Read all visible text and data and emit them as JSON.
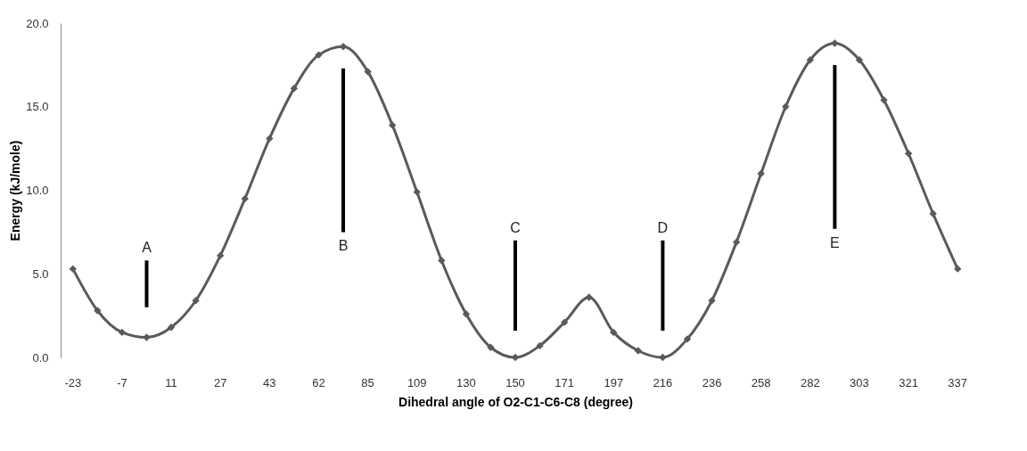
{
  "chart_data": {
    "type": "line",
    "xlabel": "Dihedral angle of O2-C1-C6-C8 (degree)",
    "ylabel": "Energy (kJ/mole)",
    "categories": [
      "-23",
      null,
      "-7",
      null,
      "11",
      null,
      "27",
      null,
      "43",
      null,
      "62",
      null,
      "85",
      null,
      "109",
      null,
      "130",
      null,
      "150",
      null,
      "171",
      null,
      "197",
      null,
      "216",
      null,
      "236",
      null,
      "258",
      null,
      "282",
      null,
      "303",
      null,
      "321",
      null,
      "337"
    ],
    "series": [
      {
        "color": "#5a5a5a",
        "marker": "diamond",
        "line_style": "solid",
        "values": [
          5.3,
          2.8,
          1.5,
          1.2,
          1.8,
          3.4,
          6.1,
          9.5,
          13.1,
          16.1,
          18.1,
          18.6,
          17.1,
          13.9,
          9.9,
          5.8,
          2.6,
          0.6,
          0.0,
          0.7,
          2.1,
          3.6,
          1.5,
          0.4,
          0.0,
          1.1,
          3.4,
          6.9,
          11.0,
          15.0,
          17.8,
          18.8,
          17.8,
          15.4,
          12.2,
          8.6,
          5.3
        ]
      },
      {
        "type": "bar",
        "color": "#000000",
        "base": [
          null,
          null,
          null,
          3.0,
          null,
          null,
          null,
          null,
          null,
          null,
          null,
          7.5,
          null,
          null,
          null,
          null,
          null,
          null,
          1.6,
          null,
          null,
          null,
          null,
          null,
          1.6,
          null,
          null,
          null,
          null,
          null,
          null,
          7.7,
          null,
          null,
          null,
          null,
          null
        ],
        "values": [
          null,
          null,
          null,
          2.8,
          null,
          null,
          null,
          null,
          null,
          null,
          null,
          9.8,
          null,
          null,
          null,
          null,
          null,
          null,
          5.4,
          null,
          null,
          null,
          null,
          null,
          5.4,
          null,
          null,
          null,
          null,
          null,
          null,
          9.8,
          null,
          null,
          null,
          null,
          null
        ],
        "value_labels": [
          null,
          null,
          null,
          "A",
          null,
          null,
          null,
          null,
          null,
          null,
          null,
          "B",
          null,
          null,
          null,
          null,
          null,
          null,
          "C",
          null,
          null,
          null,
          null,
          null,
          "D",
          null,
          null,
          null,
          null,
          null,
          null,
          "E",
          null,
          null,
          null,
          null,
          null
        ]
      }
    ],
    "ylim": [
      0,
      20
    ],
    "yticks": [
      {
        "value": 0,
        "label": "0.0"
      },
      {
        "value": 5,
        "label": "5.0"
      },
      {
        "value": 10,
        "label": "10.0"
      },
      {
        "value": 15,
        "label": "15.0"
      },
      {
        "value": 20,
        "label": "20.0"
      }
    ],
    "grid": false
  }
}
